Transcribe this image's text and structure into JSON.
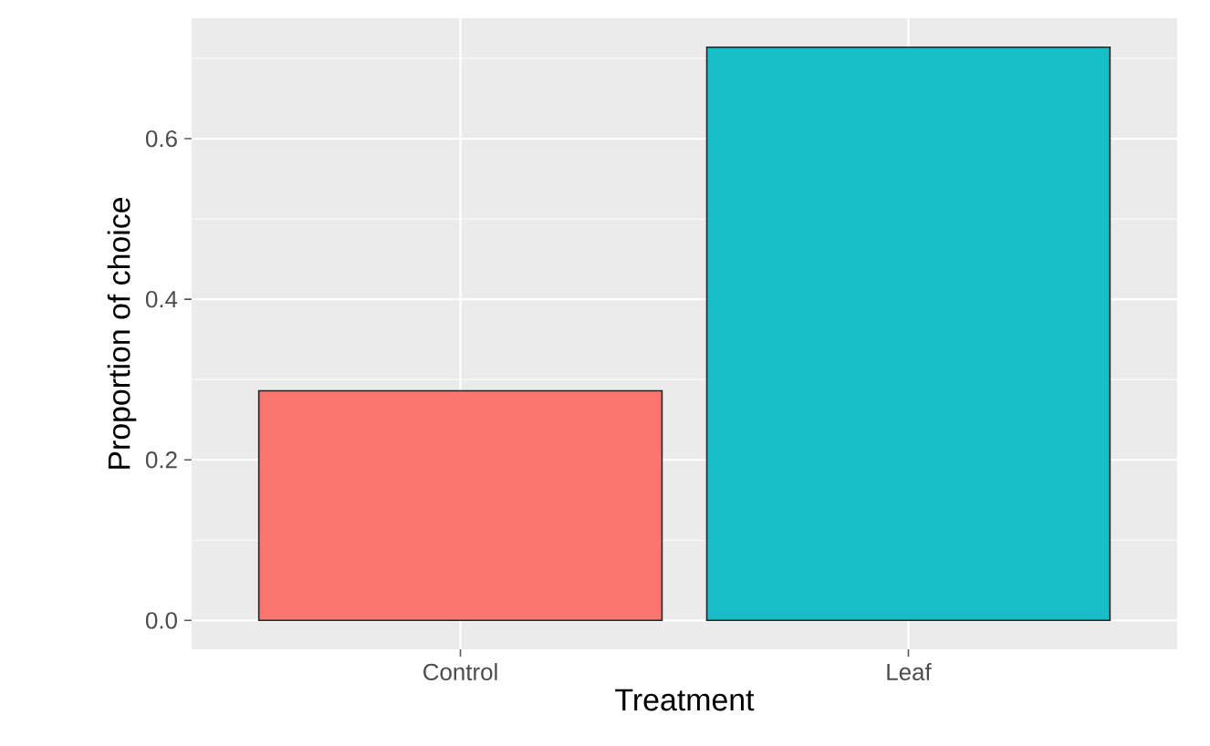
{
  "chart_data": {
    "type": "bar",
    "xlabel": "Treatment",
    "ylabel": "Proportion of choice",
    "categories": [
      "Control",
      "Leaf"
    ],
    "values": [
      0.286,
      0.714
    ],
    "colors": [
      "#f8766d",
      "#17bec7"
    ],
    "ylim": [
      -0.036,
      0.75
    ],
    "yticks": [
      {
        "value": 0,
        "label": "0.0"
      },
      {
        "value": 0.2,
        "label": "0.2"
      },
      {
        "value": 0.4,
        "label": "0.4"
      },
      {
        "value": 0.6,
        "label": "0.6"
      }
    ],
    "grid": true
  }
}
